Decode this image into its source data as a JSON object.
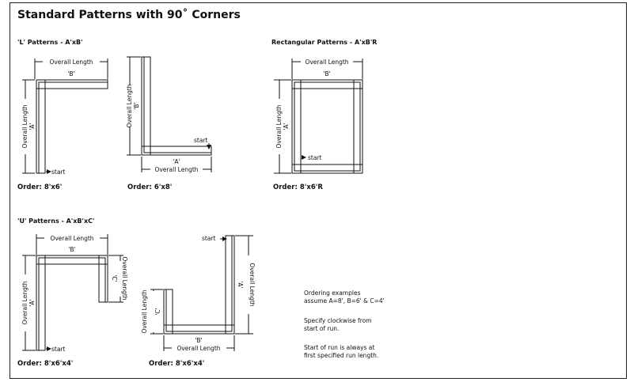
{
  "page_title": "Standard Patterns with 90˚ Corners",
  "sections": {
    "l_heading": "'L' Patterns - A'xB'",
    "rect_heading": "Rectangular Patterns - A'xB'R",
    "u_heading": "'U' Patterns - A'xB'xC'"
  },
  "labels": {
    "overall_length": "Overall Length",
    "start": "start",
    "a": "'A'",
    "b": "'B'",
    "c": "'C'"
  },
  "orders": {
    "l1": "Order: 8'x6'",
    "l2": "Order: 6'x8'",
    "rect": "Order: 8'x6'R",
    "u1": "Order: 8'x6'x4'",
    "u2": "Order: 8'x6'x4'"
  },
  "notes": {
    "n1_line1": "Ordering examples",
    "n1_line2": "assume A=8', B=6' & C=4'",
    "n2_line1": "Specify clockwise from",
    "n2_line2": "start of run.",
    "n3_line1": "Start of run is always at",
    "n3_line2": "first specified run length."
  }
}
